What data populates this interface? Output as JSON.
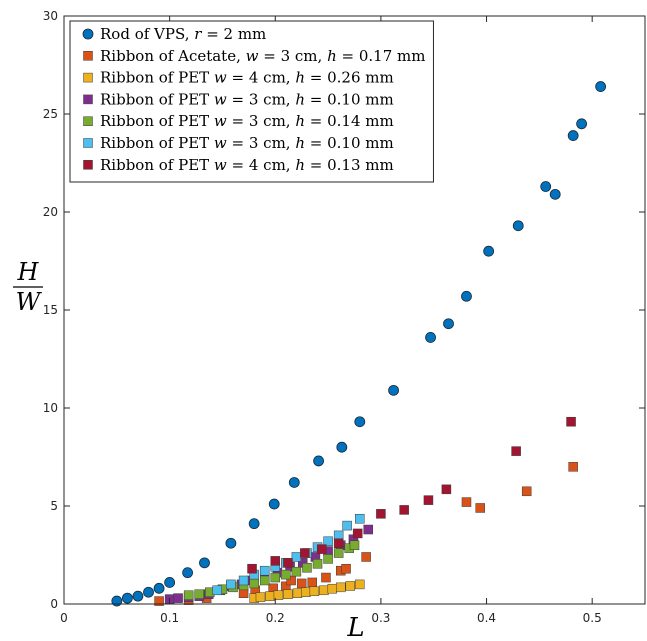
{
  "chart_data": {
    "type": "scatter",
    "xlabel": "L",
    "ylabel_num": "H",
    "ylabel_den": "W",
    "xlim": [
      0,
      0.55
    ],
    "ylim": [
      0,
      30
    ],
    "xticks": [
      0,
      0.1,
      0.2,
      0.3,
      0.4,
      0.5
    ],
    "xtick_labels": [
      "0",
      "0.1",
      "0.2",
      "0.3",
      "0.4",
      "0.5"
    ],
    "yticks": [
      0,
      5,
      10,
      15,
      20,
      25,
      30
    ],
    "ytick_labels": [
      "0",
      "5",
      "10",
      "15",
      "20",
      "25",
      "30"
    ],
    "grid": false,
    "legend_position": "top-left",
    "series": [
      {
        "name": "Rod of VPS, r = 2 mm",
        "marker": "circle",
        "color": "#0072BD",
        "x": [
          0.05,
          0.06,
          0.07,
          0.08,
          0.09,
          0.1,
          0.117,
          0.133,
          0.158,
          0.18,
          0.199,
          0.218,
          0.241,
          0.263,
          0.28,
          0.312,
          0.347,
          0.364,
          0.381,
          0.402,
          0.43,
          0.456,
          0.465,
          0.482,
          0.49,
          0.508
        ],
        "y": [
          0.15,
          0.3,
          0.4,
          0.6,
          0.8,
          1.1,
          1.6,
          2.1,
          3.1,
          4.1,
          5.1,
          6.2,
          7.3,
          8.0,
          9.3,
          10.9,
          13.6,
          14.3,
          15.7,
          18.0,
          19.3,
          21.3,
          20.9,
          23.9,
          24.5,
          26.4
        ]
      },
      {
        "name": "Ribbon of Acetate, w = 3 cm, h = 0.17 mm",
        "marker": "square",
        "color": "#D95319",
        "x": [
          0.09,
          0.118,
          0.135,
          0.17,
          0.181,
          0.198,
          0.21,
          0.215,
          0.225,
          0.235,
          0.248,
          0.262,
          0.267,
          0.286,
          0.381,
          0.394,
          0.438,
          0.482
        ],
        "y": [
          0.15,
          0.2,
          0.3,
          0.55,
          0.7,
          0.8,
          0.9,
          1.2,
          1.05,
          1.1,
          1.35,
          1.7,
          1.8,
          2.4,
          5.2,
          4.9,
          5.75,
          7.0
        ]
      },
      {
        "name": "Ribbon of PET w = 4 cm, h = 0.26 mm",
        "marker": "square",
        "color": "#EDB120",
        "x": [
          0.18,
          0.186,
          0.195,
          0.203,
          0.212,
          0.221,
          0.229,
          0.237,
          0.246,
          0.254,
          0.262,
          0.271,
          0.28
        ],
        "y": [
          0.3,
          0.35,
          0.4,
          0.45,
          0.5,
          0.55,
          0.6,
          0.65,
          0.7,
          0.78,
          0.85,
          0.92,
          1.0
        ]
      },
      {
        "name": "Ribbon of PET w = 3 cm, h = 0.10 mm",
        "marker": "square",
        "color": "#7E2F8E",
        "x": [
          0.1,
          0.108,
          0.118,
          0.128,
          0.137,
          0.148,
          0.158,
          0.168,
          0.178,
          0.19,
          0.202,
          0.214,
          0.226,
          0.238,
          0.25,
          0.262,
          0.274,
          0.288
        ],
        "y": [
          0.25,
          0.3,
          0.35,
          0.4,
          0.5,
          0.7,
          0.9,
          1.0,
          1.2,
          1.4,
          1.6,
          1.9,
          2.1,
          2.4,
          2.7,
          3.0,
          3.3,
          3.8
        ]
      },
      {
        "name": "Ribbon of PET w = 3 cm, h = 0.14 mm",
        "marker": "square",
        "color": "#77AC30",
        "x": [
          0.118,
          0.128,
          0.138,
          0.15,
          0.16,
          0.17,
          0.18,
          0.19,
          0.2,
          0.21,
          0.22,
          0.23,
          0.24,
          0.25,
          0.26,
          0.27,
          0.275
        ],
        "y": [
          0.45,
          0.5,
          0.6,
          0.75,
          0.85,
          0.95,
          1.05,
          1.2,
          1.35,
          1.5,
          1.65,
          1.85,
          2.05,
          2.3,
          2.6,
          2.85,
          3.0
        ]
      },
      {
        "name": "Ribbon of PET w = 3 cm, h = 0.10 mm",
        "marker": "square",
        "color": "#4DBEEE",
        "x": [
          0.145,
          0.158,
          0.17,
          0.18,
          0.19,
          0.2,
          0.21,
          0.22,
          0.23,
          0.24,
          0.25,
          0.26,
          0.268,
          0.28
        ],
        "y": [
          0.7,
          1.0,
          1.2,
          1.5,
          1.7,
          1.9,
          2.1,
          2.4,
          2.6,
          2.9,
          3.2,
          3.5,
          4.0,
          4.35
        ]
      },
      {
        "name": "Ribbon of PET w = 4 cm, h = 0.13 mm",
        "marker": "square",
        "color": "#A2142F",
        "x": [
          0.178,
          0.2,
          0.212,
          0.228,
          0.244,
          0.26,
          0.278,
          0.3,
          0.322,
          0.345,
          0.362,
          0.428,
          0.48
        ],
        "y": [
          1.8,
          2.2,
          2.1,
          2.6,
          2.8,
          3.1,
          3.6,
          4.6,
          4.8,
          5.3,
          5.85,
          7.8,
          9.3
        ]
      }
    ]
  },
  "legend": {
    "entries": [
      {
        "prefix": "Rod of VPS, ",
        "parts": [
          [
            "i",
            "r"
          ],
          [
            "n",
            " = 2 mm"
          ]
        ]
      },
      {
        "prefix": "Ribbon of Acetate, ",
        "parts": [
          [
            "i",
            "w"
          ],
          [
            "n",
            " = 3 cm, "
          ],
          [
            "i",
            "h"
          ],
          [
            "n",
            " = 0.17 mm"
          ]
        ]
      },
      {
        "prefix": "Ribbon of PET ",
        "parts": [
          [
            "i",
            "w"
          ],
          [
            "n",
            " = 4 cm, "
          ],
          [
            "i",
            "h"
          ],
          [
            "n",
            " = 0.26 mm"
          ]
        ]
      },
      {
        "prefix": "Ribbon of PET ",
        "parts": [
          [
            "i",
            "w"
          ],
          [
            "n",
            " = 3 cm, "
          ],
          [
            "i",
            "h"
          ],
          [
            "n",
            " = 0.10 mm"
          ]
        ]
      },
      {
        "prefix": "Ribbon of PET ",
        "parts": [
          [
            "i",
            "w"
          ],
          [
            "n",
            " = 3 cm, "
          ],
          [
            "i",
            "h"
          ],
          [
            "n",
            " = 0.14 mm"
          ]
        ]
      },
      {
        "prefix": "Ribbon of PET ",
        "parts": [
          [
            "i",
            "w"
          ],
          [
            "n",
            " = 3 cm, "
          ],
          [
            "i",
            "h"
          ],
          [
            "n",
            " = 0.10 mm"
          ]
        ]
      },
      {
        "prefix": "Ribbon of PET ",
        "parts": [
          [
            "i",
            "w"
          ],
          [
            "n",
            " = 4 cm, "
          ],
          [
            "i",
            "h"
          ],
          [
            "n",
            " = 0.13 mm"
          ]
        ]
      }
    ]
  }
}
